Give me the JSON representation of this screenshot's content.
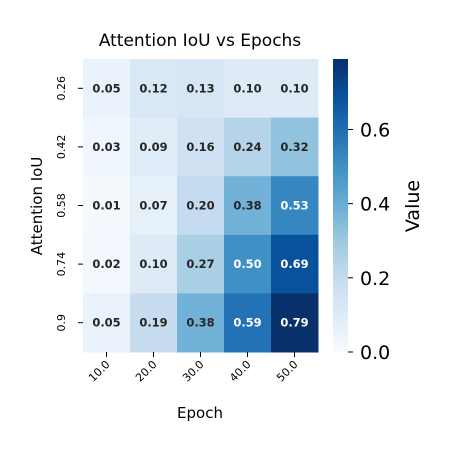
{
  "chart_data": {
    "type": "heatmap",
    "title": "Attention IoU vs Epochs",
    "xlabel": "Epoch",
    "ylabel": "Attention IoU",
    "x_categories": [
      "10.0",
      "20.0",
      "30.0",
      "40.0",
      "50.0"
    ],
    "y_categories": [
      "0.26",
      "0.42",
      "0.58",
      "0.74",
      "0.9"
    ],
    "values": [
      [
        0.05,
        0.12,
        0.13,
        0.1,
        0.1
      ],
      [
        0.03,
        0.09,
        0.16,
        0.24,
        0.32
      ],
      [
        0.01,
        0.07,
        0.2,
        0.38,
        0.53
      ],
      [
        0.02,
        0.1,
        0.27,
        0.5,
        0.69
      ],
      [
        0.05,
        0.19,
        0.38,
        0.59,
        0.79
      ]
    ],
    "colorscale": "Blues",
    "colorbar": {
      "label": "Value",
      "range": [
        0.0,
        0.79
      ],
      "ticks": [
        "0.0",
        "0.2",
        "0.4",
        "0.6"
      ]
    }
  }
}
